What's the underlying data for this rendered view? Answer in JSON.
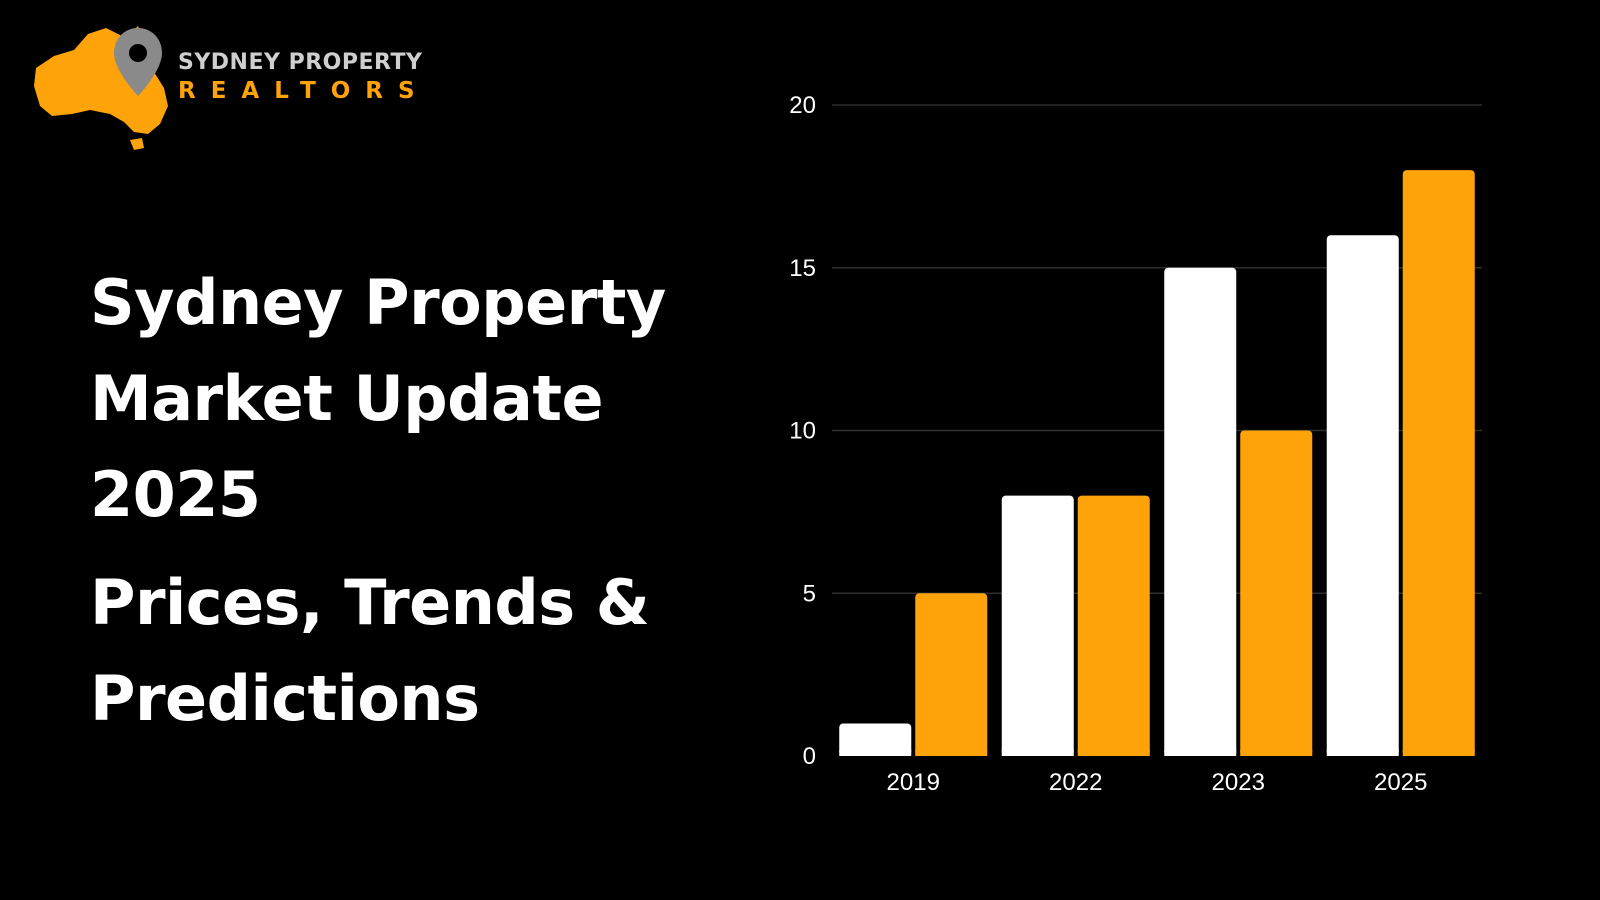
{
  "brand": {
    "name_line1": "SYDNEY PROPERTY",
    "name_line2": "REALTORS"
  },
  "headline": {
    "title_lines": [
      "Sydney Property",
      "Market Update",
      "2025"
    ],
    "subtitle_lines": [
      "Prices, Trends &",
      "Predictions"
    ]
  },
  "colors": {
    "background": "#000000",
    "accent": "#ffa30a",
    "series_white": "#ffffff"
  },
  "icons": [
    "australia-map-icon",
    "location-pin-icon"
  ],
  "chart_data": {
    "type": "bar",
    "categories": [
      "2019",
      "2022",
      "2023",
      "2025"
    ],
    "series": [
      {
        "color": "#ffffff",
        "values": [
          1,
          8,
          15,
          16
        ]
      },
      {
        "color": "#ffa30a",
        "values": [
          5,
          8,
          10,
          18
        ]
      }
    ],
    "yticks": [
      0,
      5,
      10,
      15,
      20
    ],
    "ylim": [
      0,
      20
    ],
    "grid": true,
    "legend": "none"
  }
}
